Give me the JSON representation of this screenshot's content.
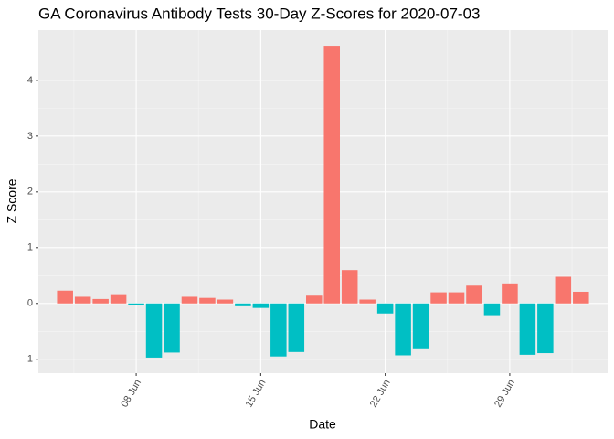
{
  "chart_data": {
    "type": "bar",
    "title": "GA Coronavirus Antibody Tests 30-Day Z-Scores for 2020-07-03",
    "x_label": "Date",
    "y_label": "Z Score",
    "categories": [
      null,
      null,
      null,
      null,
      "08 Jun",
      null,
      null,
      null,
      null,
      null,
      null,
      "15 Jun",
      null,
      null,
      null,
      null,
      null,
      null,
      "22 Jun",
      null,
      null,
      null,
      null,
      null,
      null,
      "29 Jun",
      null,
      null,
      null,
      null
    ],
    "values": [
      0.23,
      0.12,
      0.08,
      0.15,
      -0.02,
      -0.97,
      -0.88,
      0.12,
      0.1,
      0.07,
      -0.05,
      -0.08,
      -0.95,
      -0.87,
      0.14,
      4.62,
      0.6,
      0.07,
      -0.18,
      -0.93,
      -0.82,
      0.2,
      0.2,
      0.32,
      -0.21,
      0.36,
      -0.92,
      -0.89,
      0.48,
      0.21
    ],
    "positive_color": "#F8766D",
    "negative_color": "#00BFC4",
    "ylim": [
      -1.25,
      4.9
    ],
    "yticks": [
      -1,
      0,
      1,
      2,
      3,
      4
    ],
    "grid": true
  }
}
